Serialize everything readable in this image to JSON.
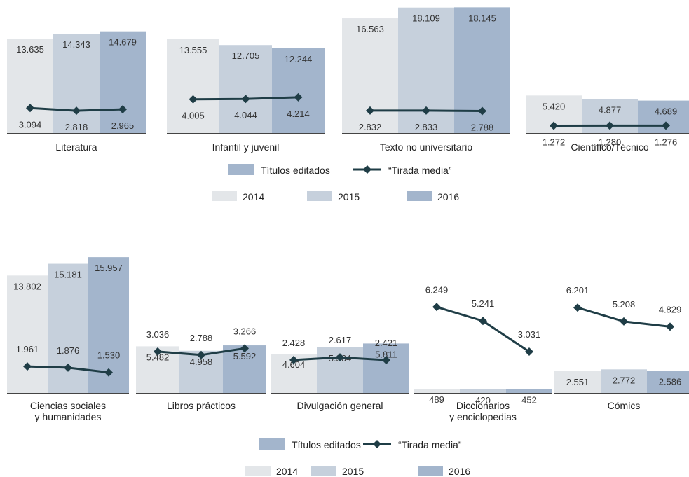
{
  "colors": {
    "year_2014": "#e3e6e9",
    "year_2015": "#c6d0dc",
    "year_2016": "#a3b5cc",
    "titulos_legend": "#a3b5cc",
    "tirada_line": "#1f3d46"
  },
  "chart_data": [
    {
      "type": "bar",
      "legend": {
        "series": [
          "Títulos editados",
          "“Tirada media”"
        ],
        "years": [
          "2014",
          "2015",
          "2016"
        ]
      },
      "groups": [
        {
          "category": "Literatura",
          "titulos": [
            13635,
            14343,
            14679
          ],
          "titulos_labels": [
            "13.635",
            "14.343",
            "14.679"
          ],
          "tirada": [
            3094,
            2818,
            2965
          ],
          "tirada_labels": [
            "3.094",
            "2.818",
            "2.965"
          ]
        },
        {
          "category": "Infantil y juvenil",
          "titulos": [
            13555,
            12705,
            12244
          ],
          "titulos_labels": [
            "13.555",
            "12.705",
            "12.244"
          ],
          "tirada": [
            4005,
            4044,
            4214
          ],
          "tirada_labels": [
            "4.005",
            "4.044",
            "4.214"
          ]
        },
        {
          "category": "Texto no universitario",
          "titulos": [
            16563,
            18109,
            18145
          ],
          "titulos_labels": [
            "16.563",
            "18.109",
            "18.145"
          ],
          "tirada": [
            2832,
            2833,
            2788
          ],
          "tirada_labels": [
            "2.832",
            "2.833",
            "2.788"
          ]
        },
        {
          "category": "Científico/Técnico",
          "titulos": [
            5420,
            4877,
            4689
          ],
          "titulos_labels": [
            "5.420",
            "4.877",
            "4.689"
          ],
          "tirada": [
            1272,
            1280,
            1276
          ],
          "tirada_labels": [
            "1.272",
            "1.280",
            "1.276"
          ]
        }
      ]
    },
    {
      "type": "bar",
      "legend": {
        "series": [
          "Títulos editados",
          "“Tirada media”"
        ],
        "years": [
          "2014",
          "2015",
          "2016"
        ]
      },
      "groups": [
        {
          "category": "Ciencias sociales\ny humanidades",
          "titulos": [
            13802,
            15181,
            15957
          ],
          "titulos_labels": [
            "13.802",
            "15.181",
            "15.957"
          ],
          "tirada": [
            1961,
            1876,
            1530
          ],
          "tirada_labels": [
            "1.961",
            "1.876",
            "1.530"
          ]
        },
        {
          "category": "Libros prácticos",
          "titulos": [
            5482,
            4958,
            5592
          ],
          "titulos_labels": [
            "5.482",
            "4.958",
            "5.592"
          ],
          "tirada": [
            3036,
            2788,
            3266
          ],
          "tirada_labels": [
            "3.036",
            "2.788",
            "3.266"
          ]
        },
        {
          "category": "Divulgación general",
          "titulos": [
            4604,
            5364,
            5811
          ],
          "titulos_labels": [
            "4.604",
            "5.364",
            "5.811"
          ],
          "tirada": [
            2428,
            2617,
            2421
          ],
          "tirada_labels": [
            "2.428",
            "2.617",
            "2.421"
          ]
        },
        {
          "category": "Diccionarios\ny enciclopedias",
          "titulos": [
            489,
            420,
            452
          ],
          "titulos_labels": [
            "489",
            "420",
            "452"
          ],
          "tirada": [
            6249,
            5241,
            3031
          ],
          "tirada_labels": [
            "6.249",
            "5.241",
            "3.031"
          ]
        },
        {
          "category": "Cómics",
          "titulos": [
            2551,
            2772,
            2586
          ],
          "titulos_labels": [
            "2.551",
            "2.772",
            "2.586"
          ],
          "tirada": [
            6201,
            5208,
            4829
          ],
          "tirada_labels": [
            "6.201",
            "5.208",
            "4.829"
          ]
        }
      ]
    }
  ]
}
